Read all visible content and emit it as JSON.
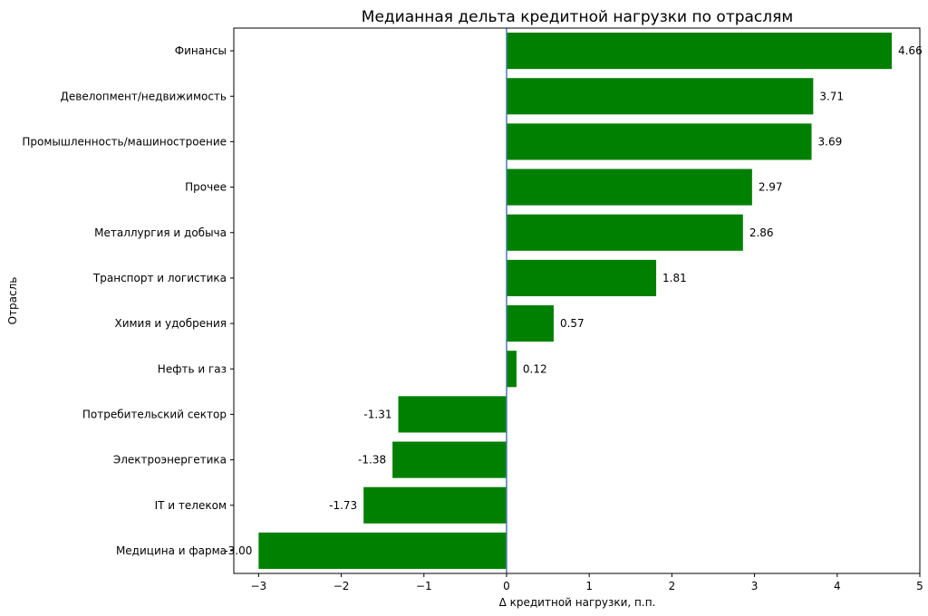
{
  "chart_data": {
    "type": "bar",
    "orientation": "horizontal",
    "title": "Медианная дельта кредитной нагрузки по отраслям",
    "xlabel": "Δ кредитной нагрузки, п.п.",
    "ylabel": "Отрасль",
    "xlim": [
      -3.3,
      5.0
    ],
    "xticks": [
      -3,
      -2,
      -1,
      0,
      1,
      2,
      3,
      4,
      5
    ],
    "xtick_labels": [
      "−3",
      "−2",
      "−1",
      "0",
      "1",
      "2",
      "3",
      "4",
      "5"
    ],
    "grid": false,
    "zero_line": true,
    "colors": {
      "bar": "#008000",
      "zero_line": "#4a7fa8"
    },
    "categories": [
      "Финансы",
      "Девелопмент/недвижимость",
      "Промышленность/машиностроение",
      "Прочее",
      "Металлургия и добыча",
      "Транспорт и логистика",
      "Химия и удобрения",
      "Нефть и газ",
      "Потребительский сектор",
      "Электроэнергетика",
      "IT и телеком",
      "Медицина и фарма"
    ],
    "values": [
      4.66,
      3.71,
      3.69,
      2.97,
      2.86,
      1.81,
      0.57,
      0.12,
      -1.31,
      -1.38,
      -1.73,
      -3.0
    ],
    "value_labels": [
      "4.66",
      "3.71",
      "3.69",
      "2.97",
      "2.86",
      "1.81",
      "0.57",
      "0.12",
      "-1.31",
      "-1.38",
      "-1.73",
      "-3.00"
    ]
  }
}
